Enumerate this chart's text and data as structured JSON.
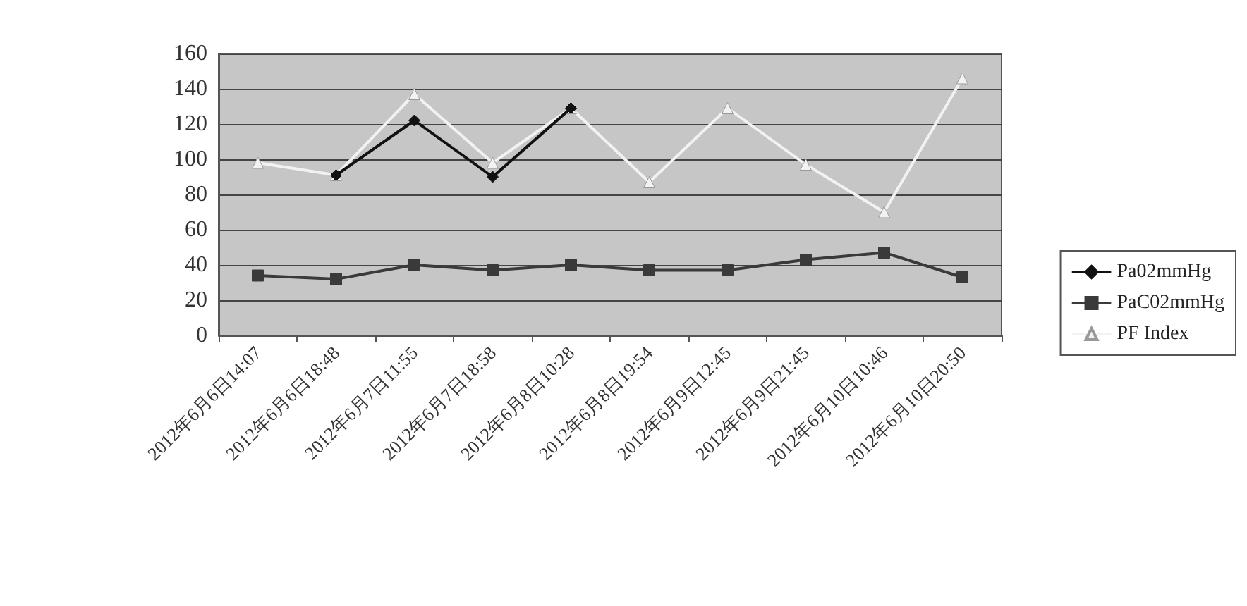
{
  "chart_data": {
    "type": "line",
    "categories": [
      "2012年6月6日14:07",
      "2012年6月6日18:48",
      "2012年6月7日11:55",
      "2012年6月7日18:58",
      "2012年6月8日10:28",
      "2012年6月8日19:54",
      "2012年6月9日12:45",
      "2012年6月9日21:45",
      "2012年6月10日10:46",
      "2012年6月10日20:50"
    ],
    "series": [
      {
        "name": "Pa02mmHg",
        "color": "#111111",
        "marker": "diamond",
        "values": [
          null,
          91,
          122,
          90,
          129,
          null,
          null,
          null,
          null,
          null
        ]
      },
      {
        "name": "PaC02mmHg",
        "color": "#3a3a3a",
        "marker": "square",
        "values": [
          34,
          32,
          40,
          37,
          40,
          37,
          37,
          43,
          47,
          33
        ]
      },
      {
        "name": "PF Index",
        "color": "#f2f2f2",
        "marker": "triangle",
        "values": [
          98,
          91,
          137,
          98,
          129,
          87,
          129,
          97,
          70,
          146
        ]
      }
    ],
    "ylim": [
      0,
      160
    ],
    "yticks": [
      0,
      20,
      40,
      60,
      80,
      100,
      120,
      140,
      160
    ],
    "grid": "y",
    "legend": "right"
  }
}
